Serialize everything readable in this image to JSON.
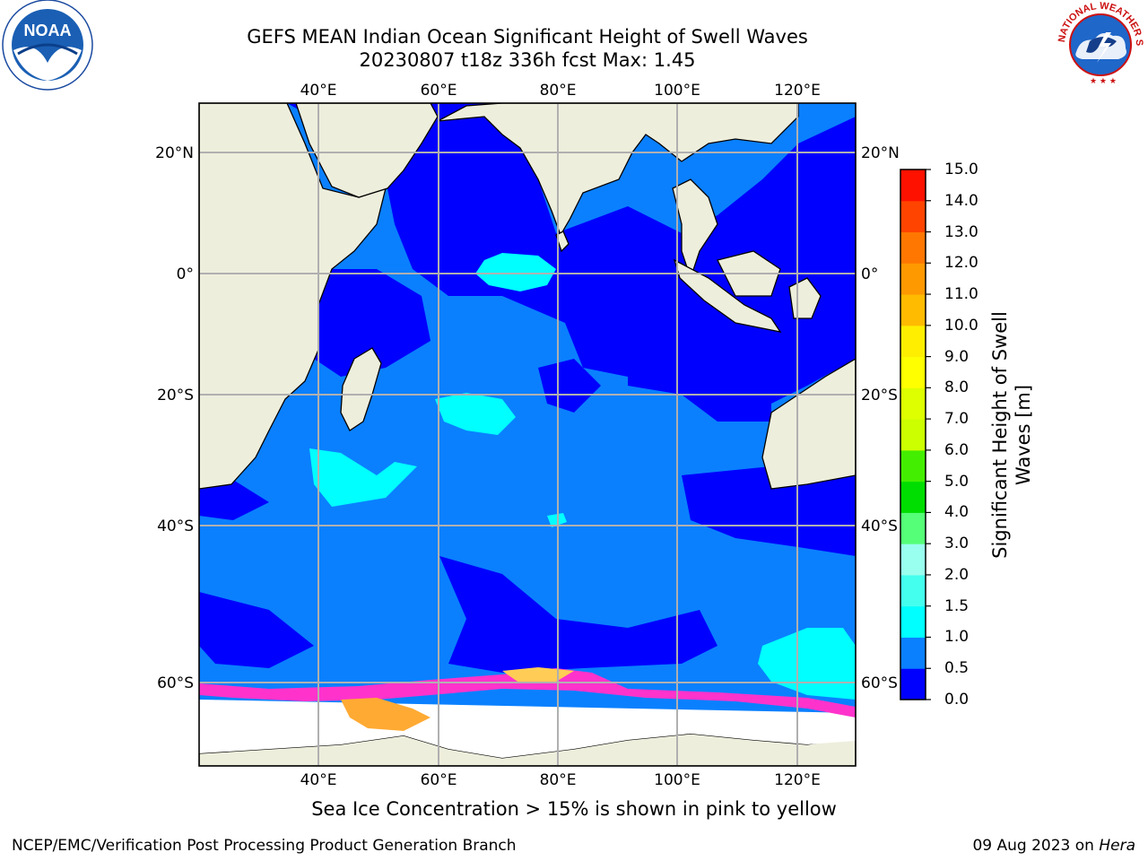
{
  "title": {
    "line1": "GEFS MEAN Indian Ocean Significant Height of Swell Waves",
    "line2": "20230807 t18z 336h fcst   Max: 1.45"
  },
  "map": {
    "lon_ticks": [
      "40°E",
      "60°E",
      "80°E",
      "100°E",
      "120°E"
    ],
    "lat_ticks": [
      "20°N",
      "0°",
      "20°S",
      "40°S",
      "60°S"
    ],
    "colors": {
      "land": "#eeeedd",
      "ice_free": "#ffffff",
      "deep_blue": "#0000ff",
      "mid_blue": "#0a80ff",
      "cyan": "#00ffff",
      "grid": "#b0b0b0",
      "ice_pink": "#ff33cc",
      "ice_orange": "#ffaa33"
    }
  },
  "colorbar": {
    "title": "Significant Height of Swell Waves [m]",
    "ticks": [
      "15.0",
      "14.0",
      "13.0",
      "12.0",
      "11.0",
      "10.0",
      "9.0",
      "8.0",
      "7.0",
      "6.0",
      "5.0",
      "4.0",
      "3.0",
      "2.0",
      "1.5",
      "1.0",
      "0.5",
      "0.0"
    ],
    "colors_bottom_to_top": [
      "#0000ff",
      "#0a80ff",
      "#00ffff",
      "#44ffee",
      "#99ffee",
      "#55ff77",
      "#00dd00",
      "#44ee00",
      "#ccff00",
      "#ddff00",
      "#ffff00",
      "#ffee00",
      "#ffbb00",
      "#ff9900",
      "#ff7700",
      "#ff4400",
      "#ff1100"
    ]
  },
  "caption": "Sea Ice Concentration > 15% is shown in pink to yellow",
  "footer": {
    "left": "NCEP/EMC/Verification Post Processing Product Generation Branch",
    "right_date": "09 Aug 2023 on",
    "right_machine": "Hera"
  },
  "logos": {
    "noaa_text": "NOAA",
    "nws_text": "NATIONAL WEATHER SERVICE"
  }
}
